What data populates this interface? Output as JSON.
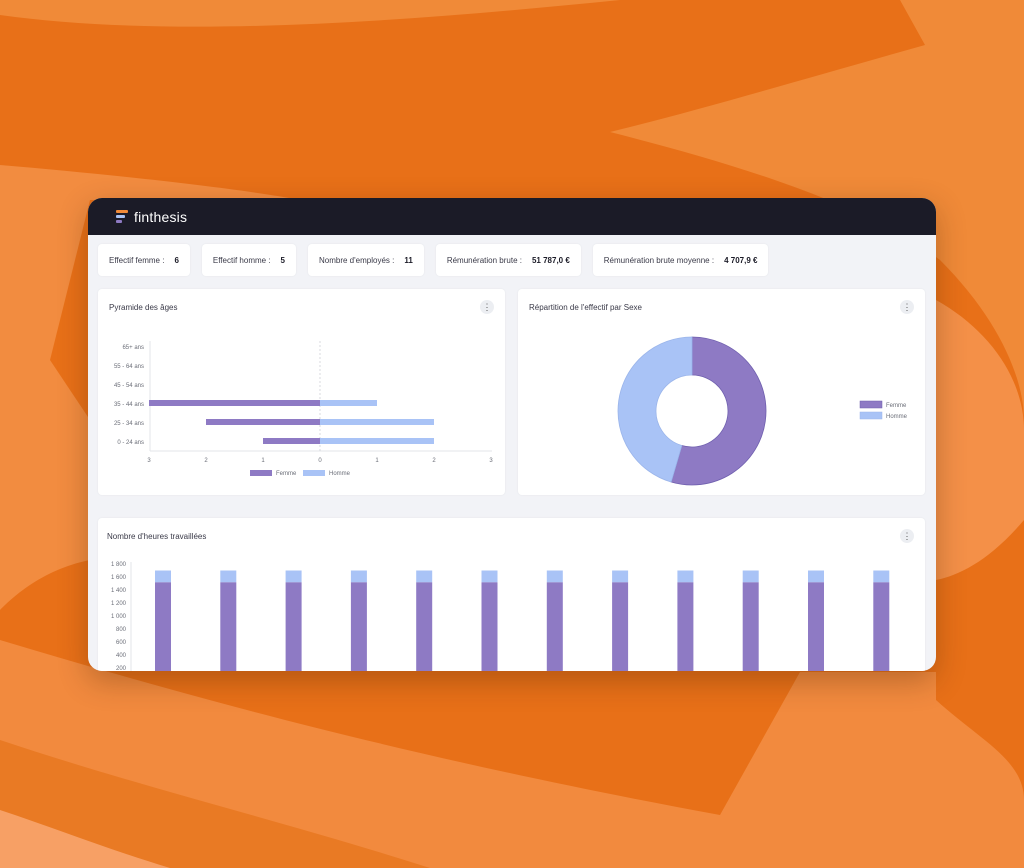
{
  "app": {
    "brand": "finthesis",
    "icon": "finthesis-logo-icon"
  },
  "colors": {
    "femme": "#8e7ac4",
    "homme": "#a9c3f6",
    "header_bg": "#1b1b27",
    "background": "#f08a38"
  },
  "kpis": [
    {
      "label": "Effectif femme :",
      "value": "6"
    },
    {
      "label": "Effectif homme :",
      "value": "5"
    },
    {
      "label": "Nombre d'employés :",
      "value": "11"
    },
    {
      "label": "Rémunération brute :",
      "value": "51 787,0 €"
    },
    {
      "label": "Rémunération brute moyenne :",
      "value": "4 707,9 €"
    }
  ],
  "pyramid": {
    "title": "Pyramide des âges"
  },
  "donut": {
    "title": "Répartition de l'effectif par Sexe"
  },
  "hours": {
    "title": "Nombre d'heures travaillées"
  },
  "chart_data": [
    {
      "type": "bar",
      "title": "Pyramide des âges",
      "orientation": "horizontal",
      "categories": [
        "65+ ans",
        "55 - 64 ans",
        "45 - 54 ans",
        "35 - 44 ans",
        "25 - 34 ans",
        "0 - 24 ans"
      ],
      "series": [
        {
          "name": "Femme",
          "values": [
            0,
            0,
            0,
            3,
            2,
            1
          ]
        },
        {
          "name": "Homme",
          "values": [
            0,
            0,
            0,
            1,
            2,
            2
          ]
        }
      ],
      "xticks": [
        "3",
        "2",
        "1",
        "0",
        "1",
        "2",
        "3"
      ],
      "xlim": [
        -3,
        3
      ],
      "legend": "bottom"
    },
    {
      "type": "pie",
      "title": "Répartition de l'effectif par Sexe",
      "labels": [
        "Femme",
        "Homme"
      ],
      "values": [
        6,
        5
      ],
      "legend": "right"
    },
    {
      "type": "bar",
      "title": "Nombre d'heures travaillées",
      "stacked": true,
      "categories": [
        "",
        "",
        "",
        "",
        "",
        "",
        "",
        "",
        "",
        "",
        "",
        ""
      ],
      "series": [
        {
          "values": [
            1520,
            1520,
            1520,
            1520,
            1520,
            1520,
            1520,
            1520,
            1520,
            1520,
            1520,
            1520
          ]
        },
        {
          "values": [
            180,
            180,
            180,
            180,
            180,
            180,
            180,
            180,
            180,
            180,
            180,
            180
          ]
        }
      ],
      "yticks": [
        "200",
        "400",
        "600",
        "800",
        "1 000",
        "1 200",
        "1 400",
        "1 600",
        "1 800"
      ],
      "ylim": [
        0,
        1800
      ]
    }
  ]
}
